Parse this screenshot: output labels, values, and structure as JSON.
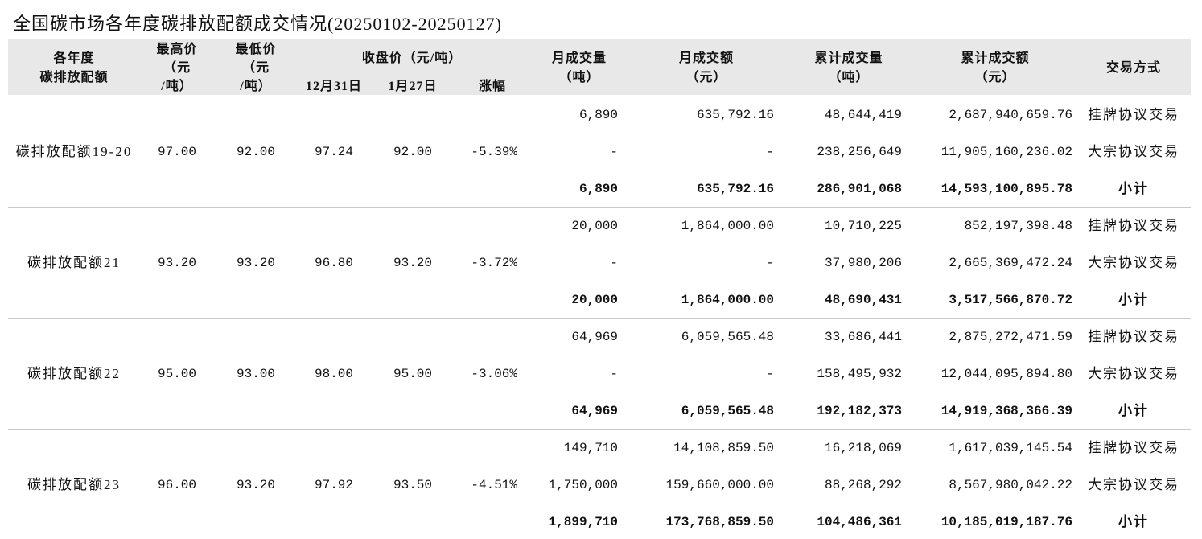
{
  "title": "全国碳市场各年度碳排放配额成交情况(20250102-20250127)",
  "header": {
    "columns": [
      [
        "各年度",
        "碳排放配额"
      ],
      [
        "最高价",
        "（元",
        "/吨）"
      ],
      [
        "最低价",
        "（元",
        "/吨）"
      ],
      [
        "月成交量",
        "（吨）"
      ],
      [
        "月成交额",
        "（元）"
      ],
      [
        "累计成交量",
        "（吨）"
      ],
      [
        "累计成交额",
        "（元）"
      ],
      [
        "交易方式"
      ]
    ],
    "close_group": "收盘价（元/吨）",
    "close_sub": [
      "12月31日",
      "1月27日",
      "涨幅"
    ]
  },
  "groups": [
    {
      "name": "碳排放配额19-20",
      "high": "97.00",
      "low": "92.00",
      "close_1231": "97.24",
      "close_0127": "92.00",
      "change": "-5.39%",
      "rows": [
        [
          "6,890",
          "635,792.16",
          "48,644,419",
          "2,687,940,659.76",
          "挂牌协议交易"
        ],
        [
          "-",
          "-",
          "238,256,649",
          "11,905,160,236.02",
          "大宗协议交易"
        ],
        [
          "6,890",
          "635,792.16",
          "286,901,068",
          "14,593,100,895.78",
          "小计"
        ]
      ]
    },
    {
      "name": "碳排放配额21",
      "high": "93.20",
      "low": "93.20",
      "close_1231": "96.80",
      "close_0127": "93.20",
      "change": "-3.72%",
      "rows": [
        [
          "20,000",
          "1,864,000.00",
          "10,710,225",
          "852,197,398.48",
          "挂牌协议交易"
        ],
        [
          "-",
          "-",
          "37,980,206",
          "2,665,369,472.24",
          "大宗协议交易"
        ],
        [
          "20,000",
          "1,864,000.00",
          "48,690,431",
          "3,517,566,870.72",
          "小计"
        ]
      ]
    },
    {
      "name": "碳排放配额22",
      "high": "95.00",
      "low": "93.00",
      "close_1231": "98.00",
      "close_0127": "95.00",
      "change": "-3.06%",
      "rows": [
        [
          "64,969",
          "6,059,565.48",
          "33,686,441",
          "2,875,272,471.59",
          "挂牌协议交易"
        ],
        [
          "-",
          "-",
          "158,495,932",
          "12,044,095,894.80",
          "大宗协议交易"
        ],
        [
          "64,969",
          "6,059,565.48",
          "192,182,373",
          "14,919,368,366.39",
          "小计"
        ]
      ]
    },
    {
      "name": "碳排放配额23",
      "high": "96.00",
      "low": "93.20",
      "close_1231": "97.92",
      "close_0127": "93.50",
      "change": "-4.51%",
      "rows": [
        [
          "149,710",
          "14,108,859.50",
          "16,218,069",
          "1,617,039,145.54",
          "挂牌协议交易"
        ],
        [
          "1,750,000",
          "159,660,000.00",
          "88,268,292",
          "8,567,980,042.22",
          "大宗协议交易"
        ],
        [
          "1,899,710",
          "173,768,859.50",
          "104,486,361",
          "10,185,019,187.76",
          "小计"
        ]
      ]
    }
  ]
}
